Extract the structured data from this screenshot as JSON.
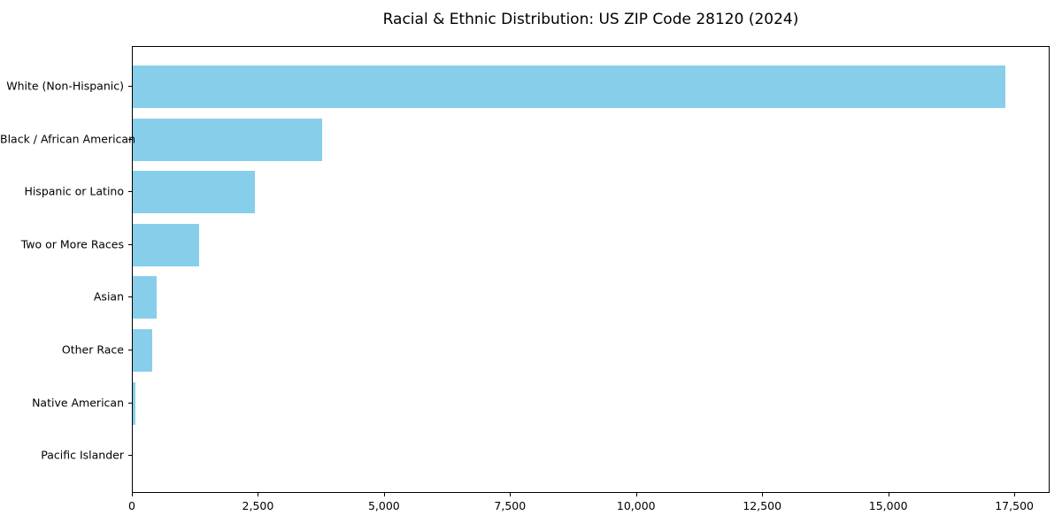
{
  "chart_data": {
    "type": "bar",
    "orientation": "horizontal",
    "title": "Racial & Ethnic Distribution: US ZIP Code 28120 (2024)",
    "categories": [
      "White (Non-Hispanic)",
      "Black / African American",
      "Hispanic or Latino",
      "Two or More Races",
      "Asian",
      "Other Race",
      "Native American",
      "Pacific Islander"
    ],
    "values": [
      17340,
      3760,
      2420,
      1320,
      475,
      385,
      55,
      0
    ],
    "xlabel": "",
    "ylabel": "",
    "xlim": [
      0,
      18200
    ],
    "xticks": [
      0,
      2500,
      5000,
      7500,
      10000,
      12500,
      15000,
      17500
    ],
    "xtick_labels": [
      "0",
      "2,500",
      "5,000",
      "7,500",
      "10,000",
      "12,500",
      "15,000",
      "17,500"
    ],
    "bar_color": "#87CEEB",
    "grid": false,
    "legend_position": "none"
  }
}
